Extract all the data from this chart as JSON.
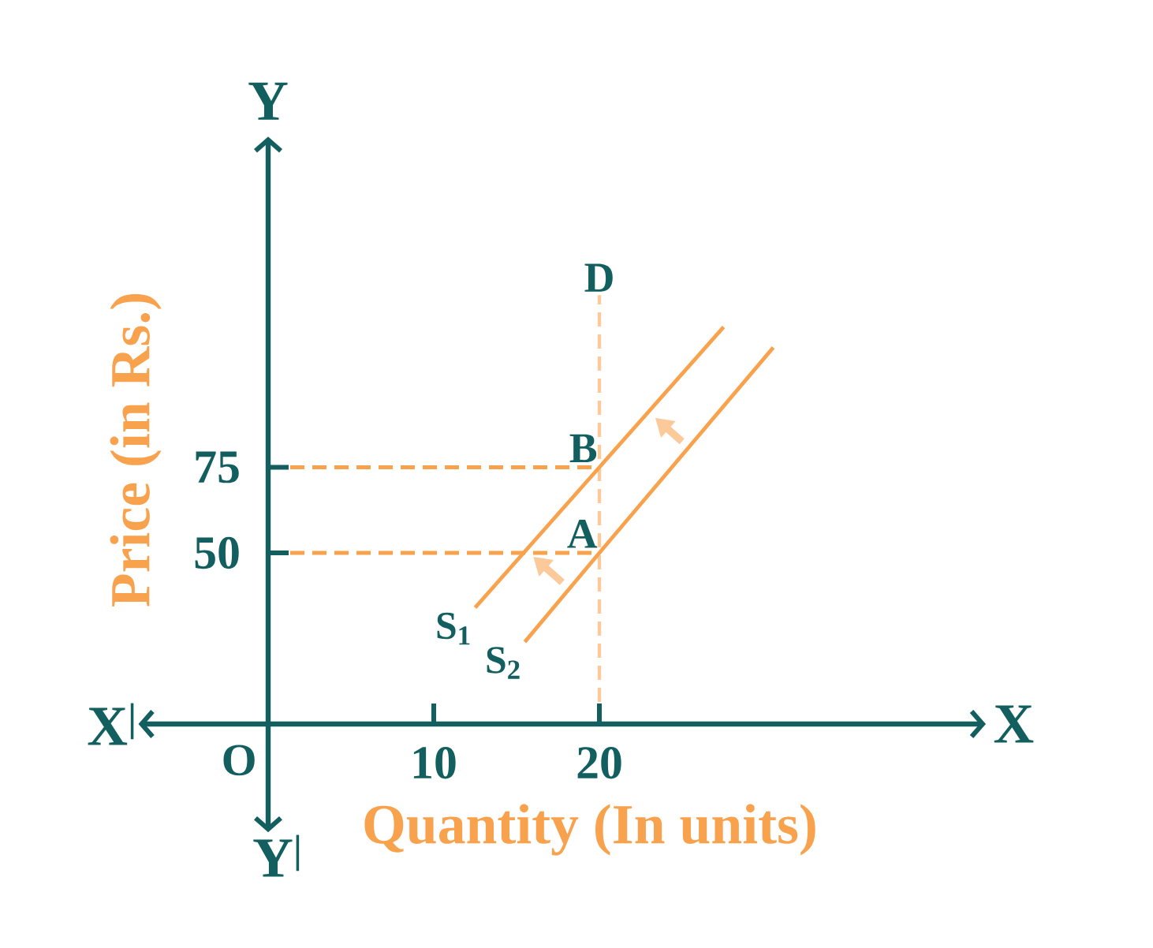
{
  "chart_data": {
    "type": "line",
    "xlabel": "Quantity (In units)",
    "ylabel": "Price (in Rs.)",
    "xlim": [
      -7.5,
      43
    ],
    "ylim": [
      -30,
      170
    ],
    "xticks": [
      10,
      20
    ],
    "yticks": [
      50,
      75
    ],
    "series": [
      {
        "name": "S$_{1}$",
        "color": "#f9a24d",
        "x": [
          12.5,
          20,
          27.5
        ],
        "values": [
          34,
          75,
          116
        ]
      },
      {
        "name": "S$_{2}$",
        "color": "#f9a24d",
        "x": [
          15.5,
          20,
          30.5
        ],
        "values": [
          24,
          50,
          110
        ]
      }
    ],
    "ref_lines": [
      {
        "axis": "y",
        "value": 75,
        "color": "#f9a24d",
        "line_style": "dashed"
      },
      {
        "axis": "y",
        "value": 50,
        "color": "#f9a24d",
        "line_style": "dashed"
      },
      {
        "axis": "x",
        "value": 20,
        "label": "D",
        "color": "#fcc99a",
        "line_style": "dashed"
      }
    ],
    "annotations": [
      "X",
      "X$^{|}$",
      "Y",
      "Y$^{|}$",
      "O",
      {
        "text": "A",
        "x": 20,
        "y": 50
      },
      {
        "text": "B",
        "x": 20,
        "y": 75
      }
    ],
    "legend": false,
    "marker": "none",
    "line_style": "solid"
  }
}
